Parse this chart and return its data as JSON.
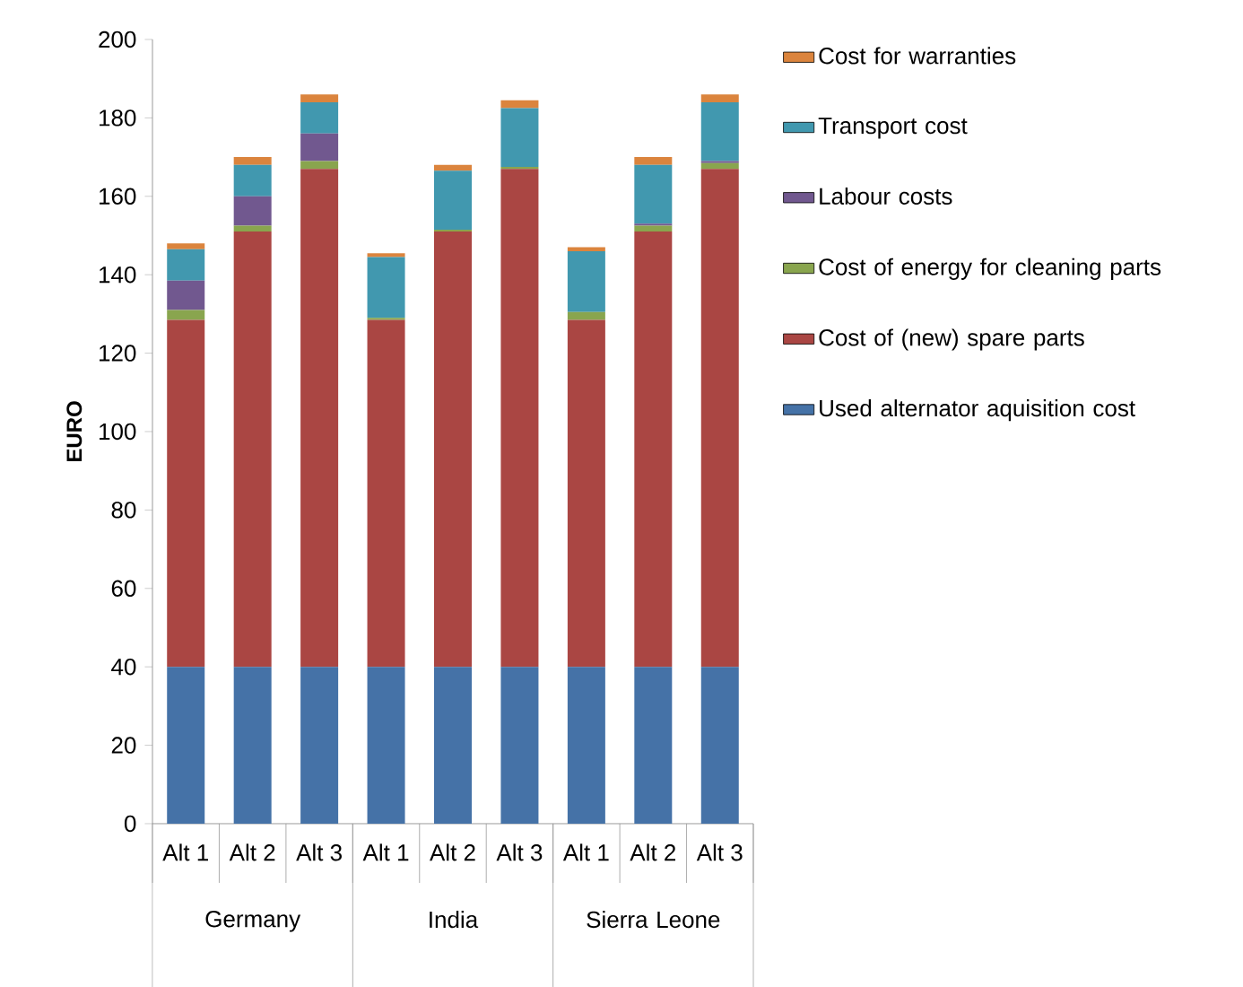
{
  "chart_data": {
    "type": "bar",
    "stacked": true,
    "ylabel": "EURO",
    "categories": [
      "Alt 1",
      "Alt 2",
      "Alt 3",
      "Alt 1",
      "Alt 2",
      "Alt 3",
      "Alt 1",
      "Alt 2",
      "Alt 3"
    ],
    "annotations": [
      "Germany",
      "India",
      "Sierra Leone"
    ],
    "ylim": [
      0,
      200
    ],
    "yticks": [
      0,
      20,
      40,
      60,
      80,
      100,
      120,
      140,
      160,
      180,
      200
    ],
    "grid": false,
    "legend": "right",
    "series": [
      {
        "name": "Used alternator aquisition cost",
        "color": "#4572a7",
        "values": [
          40,
          40,
          40,
          40,
          40,
          40,
          40,
          40,
          40
        ]
      },
      {
        "name": "Cost of (new) spare parts",
        "color": "#aa4643",
        "values": [
          88.5,
          111,
          127,
          88.5,
          111,
          127,
          88.5,
          111,
          127
        ]
      },
      {
        "name": "Cost of energy for cleaning parts",
        "color": "#89a54e",
        "values": [
          2.5,
          1.5,
          2,
          0.5,
          0.5,
          0.5,
          2,
          1.5,
          1.5
        ]
      },
      {
        "name": "Labour costs",
        "color": "#71588f",
        "values": [
          7.5,
          7.5,
          7,
          0,
          0,
          0,
          0,
          0.5,
          0.5
        ]
      },
      {
        "name": "Transport cost",
        "color": "#4198af",
        "values": [
          8,
          8,
          8,
          15.5,
          15,
          15,
          15.5,
          15,
          15
        ]
      },
      {
        "name": "Cost for warranties",
        "color": "#db843d",
        "values": [
          1.5,
          2,
          2,
          1,
          1.5,
          2,
          1,
          2,
          2
        ]
      }
    ]
  }
}
